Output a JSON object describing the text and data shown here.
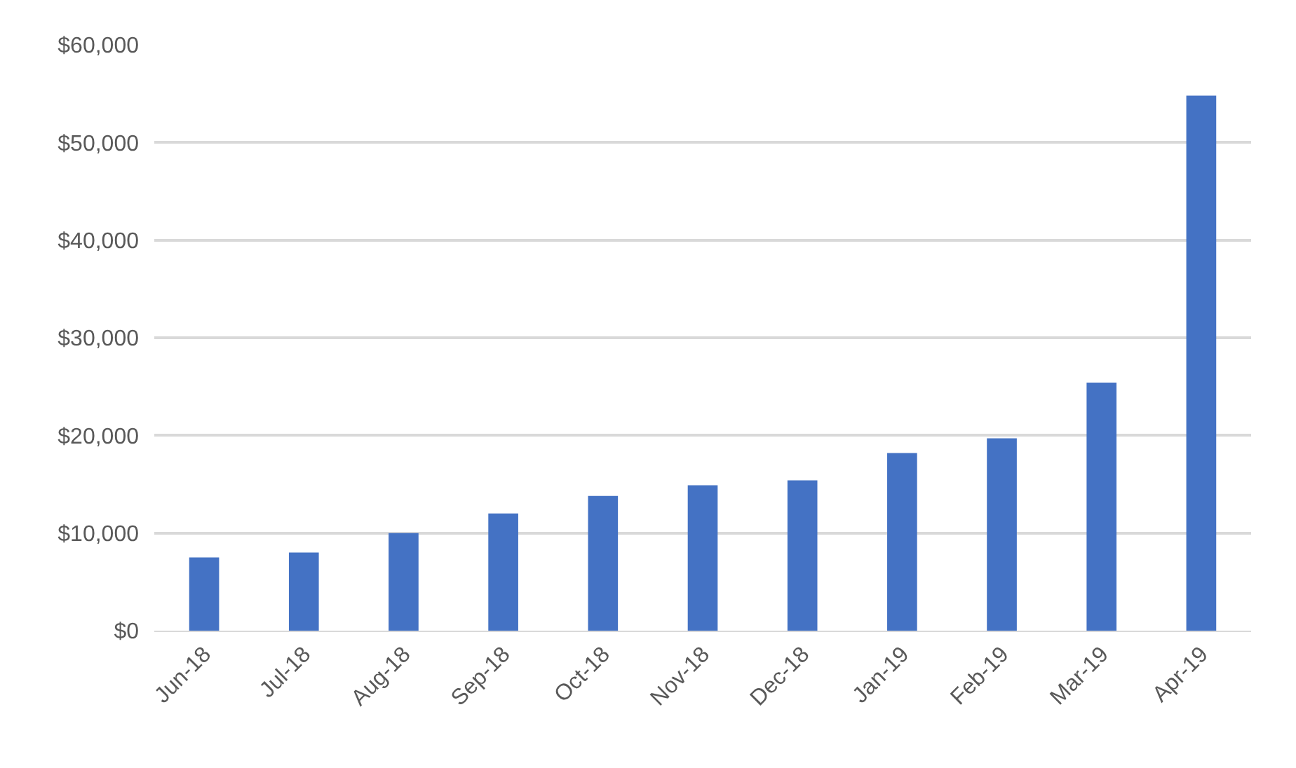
{
  "chart_data": {
    "type": "bar",
    "categories": [
      "Jun-18",
      "Jul-18",
      "Aug-18",
      "Sep-18",
      "Oct-18",
      "Nov-18",
      "Dec-18",
      "Jan-19",
      "Feb-19",
      "Mar-19",
      "Apr-19"
    ],
    "values": [
      7500,
      8000,
      10000,
      12000,
      13800,
      14900,
      15400,
      18200,
      19700,
      25400,
      54800
    ],
    "color": "#4472c4",
    "ylim": [
      0,
      60000
    ],
    "yticks": [
      {
        "value": 0,
        "label": "$0"
      },
      {
        "value": 10000,
        "label": "$10,000"
      },
      {
        "value": 20000,
        "label": "$20,000"
      },
      {
        "value": 30000,
        "label": "$30,000"
      },
      {
        "value": 40000,
        "label": "$40,000"
      },
      {
        "value": 50000,
        "label": "$50,000"
      },
      {
        "value": 60000,
        "label": "$60,000"
      }
    ],
    "grid": "y"
  }
}
